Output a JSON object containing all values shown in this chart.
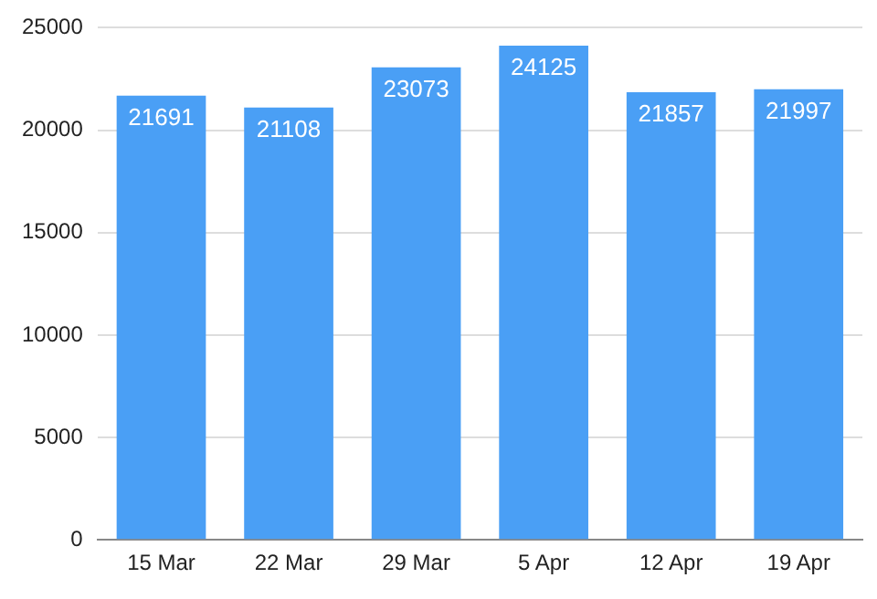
{
  "chart_data": {
    "type": "bar",
    "categories": [
      "15 Mar",
      "22 Mar",
      "29 Mar",
      "5 Apr",
      "12 Apr",
      "19 Apr"
    ],
    "values": [
      21691,
      21108,
      23073,
      24125,
      21857,
      21997
    ],
    "color": "#4a9ff5",
    "ylim": [
      0,
      25000
    ],
    "yticks": [
      0,
      5000,
      10000,
      15000,
      20000,
      25000
    ],
    "grid": "y",
    "data_labels": true,
    "legend": false
  }
}
